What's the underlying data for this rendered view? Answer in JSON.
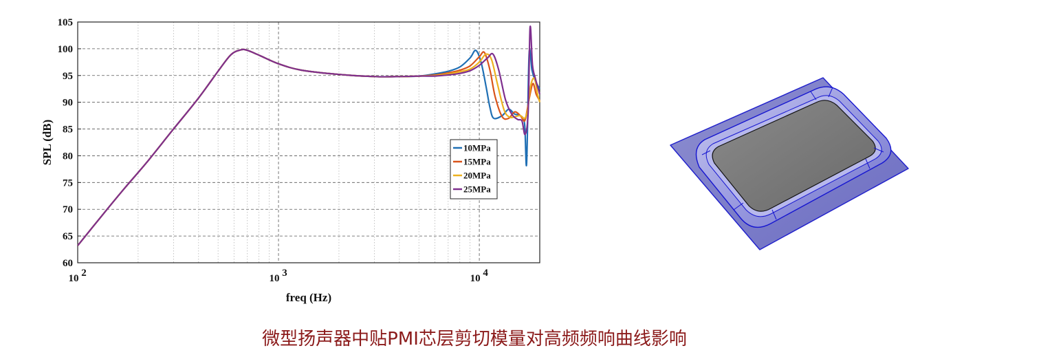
{
  "caption": "微型扬声器中贴PMI芯层剪切模量对高频频响曲线影响",
  "chart_data": {
    "type": "line",
    "title": "",
    "xlabel": "freq (Hz)",
    "ylabel": "SPL (dB)",
    "xscale": "log",
    "xlim": [
      100,
      20000
    ],
    "ylim": [
      60,
      105
    ],
    "yticks": [
      60,
      65,
      70,
      75,
      80,
      85,
      90,
      95,
      100,
      105
    ],
    "xticks": [
      {
        "value": 100,
        "base": "10",
        "exp": "2"
      },
      {
        "value": 1000,
        "base": "10",
        "exp": "3"
      },
      {
        "value": 10000,
        "base": "10",
        "exp": "4"
      }
    ],
    "grid": true,
    "legend_position": "right-middle",
    "shared_curve": {
      "x": [
        100,
        130,
        170,
        220,
        300,
        400,
        500,
        580,
        650,
        700,
        800,
        1000,
        1300,
        2000,
        3000,
        4000,
        5000
      ],
      "y": [
        63.2,
        68.5,
        73.8,
        78.7,
        85.0,
        90.8,
        95.8,
        98.9,
        99.8,
        99.7,
        98.8,
        97.2,
        96.0,
        95.2,
        94.8,
        94.8,
        94.9
      ]
    },
    "series": [
      {
        "name": "10MPa",
        "color": "#1f6fb4",
        "x": [
          6000,
          7000,
          8000,
          9000,
          9600,
          10200,
          10800,
          11300,
          11800,
          13000,
          14000,
          15000,
          16000,
          16800,
          17200,
          17700,
          18300,
          19000,
          20000
        ],
        "y": [
          95.3,
          95.8,
          96.6,
          98.3,
          99.7,
          97.5,
          93.0,
          89.0,
          87.0,
          87.5,
          88.7,
          87.8,
          87.5,
          86.0,
          78.5,
          99.0,
          96.0,
          94.0,
          92.5
        ]
      },
      {
        "name": "15MPa",
        "color": "#d9541a",
        "x": [
          6000,
          7000,
          8000,
          9000,
          10000,
          10600,
          11300,
          12000,
          13000,
          14000,
          15000,
          16000,
          16800,
          17300,
          17800,
          18500,
          19200,
          20000
        ],
        "y": [
          95.1,
          95.5,
          96.0,
          96.8,
          98.5,
          99.3,
          96.0,
          91.0,
          87.3,
          87.0,
          88.2,
          87.5,
          86.5,
          88.5,
          91.0,
          93.5,
          91.5,
          90.3
        ]
      },
      {
        "name": "20MPa",
        "color": "#edb120",
        "x": [
          6000,
          7000,
          8000,
          9000,
          10000,
          10800,
          11500,
          12300,
          13300,
          14200,
          15000,
          16000,
          16800,
          17400,
          18000,
          18800,
          19500,
          20000
        ],
        "y": [
          95.0,
          95.3,
          95.7,
          96.2,
          97.5,
          99.0,
          98.0,
          93.5,
          88.5,
          87.2,
          87.3,
          87.5,
          87.0,
          88.5,
          93.0,
          94.5,
          91.5,
          90.0
        ]
      },
      {
        "name": "25MPa",
        "color": "#7e2f8e",
        "x": [
          6000,
          7000,
          8000,
          9000,
          10000,
          11000,
          11700,
          12500,
          13500,
          14500,
          15500,
          16300,
          16900,
          17500,
          17900,
          18400,
          19000,
          20000
        ],
        "y": [
          94.9,
          95.1,
          95.4,
          95.9,
          96.9,
          98.3,
          99.0,
          96.0,
          90.5,
          87.8,
          86.8,
          86.5,
          84.0,
          88.0,
          104.0,
          97.0,
          94.5,
          91.5
        ]
      }
    ]
  }
}
